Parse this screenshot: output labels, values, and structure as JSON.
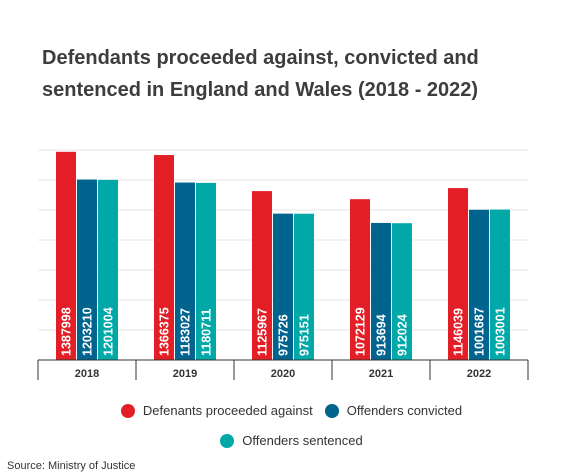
{
  "title": "Defendants proceeded against, convicted and sentenced in England and Wales (2018 - 2022)",
  "source": "Source: Ministry of Justice",
  "colors": {
    "proceeded": "#e41e26",
    "convicted": "#00648f",
    "sentenced": "#00a8a8",
    "grid": "#e6e6e6",
    "axis": "#333333"
  },
  "chart_data": {
    "type": "bar",
    "title": "Defendants proceeded against, convicted and sentenced in England and Wales (2018 - 2022)",
    "categories": [
      "2018",
      "2019",
      "2020",
      "2021",
      "2022"
    ],
    "series": [
      {
        "name": "Defenants proceeded against",
        "color": "#e41e26",
        "values": [
          1387998,
          1366375,
          1125967,
          1072129,
          1146039
        ]
      },
      {
        "name": "Offenders convicted",
        "color": "#00648f",
        "values": [
          1203210,
          1183027,
          975726,
          913694,
          1001687
        ]
      },
      {
        "name": "Offenders sentenced",
        "color": "#00a8a8",
        "values": [
          1201004,
          1180711,
          975151,
          912024,
          1003001
        ]
      }
    ],
    "ylim": [
      0,
      1400000
    ],
    "grid": true,
    "legend": "bottom"
  }
}
